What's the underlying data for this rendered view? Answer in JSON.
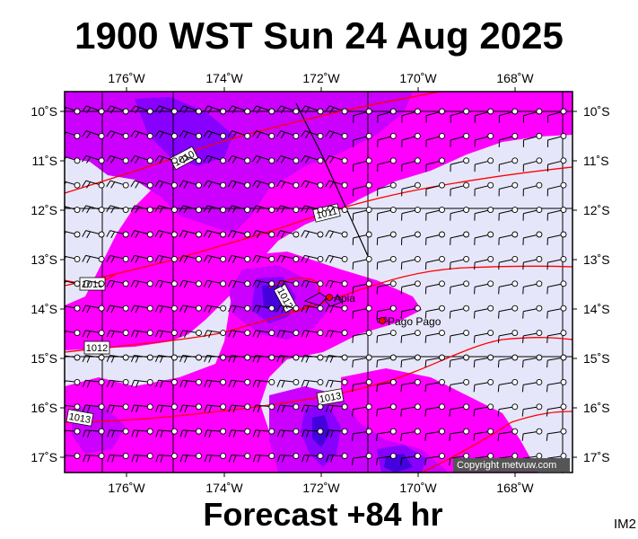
{
  "header": {
    "title": "1900 WST Sun 24 Aug 2025"
  },
  "footer": {
    "subtitle": "Forecast +84 hr",
    "image_code": "IM2",
    "copyright": "Copyright metvuw.com"
  },
  "map": {
    "lon_ticks": [
      "176˚W",
      "174˚W",
      "172˚W",
      "170˚W",
      "168˚W"
    ],
    "lat_ticks": [
      "10˚S",
      "11˚S",
      "12˚S",
      "13˚S",
      "14˚S",
      "15˚S",
      "16˚S",
      "17˚S"
    ],
    "isobar_labels": [
      "1010",
      "1011",
      "1013",
      "1012",
      "1013",
      "1013",
      "1012"
    ],
    "places": [
      "Apia",
      "Pago Pago"
    ],
    "colors": {
      "background": "#e6e6fa",
      "rain_light": "#ff00ff",
      "rain_medium": "#cc00ff",
      "rain_heavy": "#8800ff",
      "rain_very_heavy": "#4400dd",
      "isobar": "#ff0000",
      "front": "#000000"
    }
  }
}
